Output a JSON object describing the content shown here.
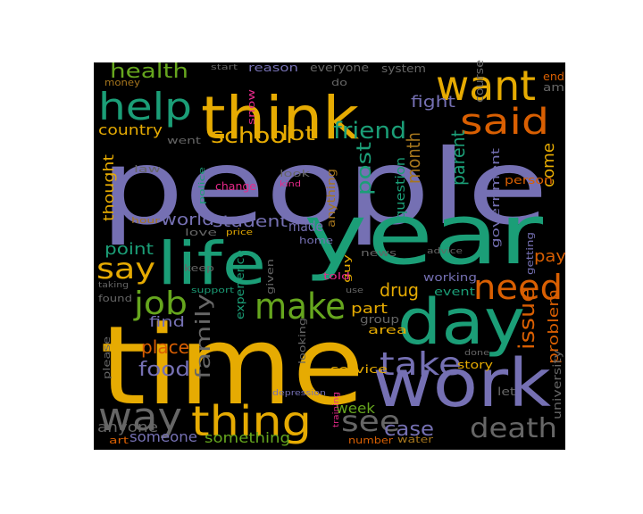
{
  "palette": {
    "purple": "#7570b3",
    "green": "#1b9e77",
    "gold": "#e6ab02",
    "orange": "#d95f02",
    "lime": "#66a61e",
    "gray": "#666666",
    "brown": "#a6761d",
    "pink": "#e7298a"
  },
  "background_color": "#000000",
  "words": [
    {
      "text": "people",
      "color": "purple"
    },
    {
      "text": "time",
      "color": "gold"
    },
    {
      "text": "year",
      "color": "green"
    },
    {
      "text": "think",
      "color": "gold"
    },
    {
      "text": "work",
      "color": "purple"
    },
    {
      "text": "day",
      "color": "green"
    },
    {
      "text": "life",
      "color": "green"
    },
    {
      "text": "want",
      "color": "gold"
    },
    {
      "text": "help",
      "color": "green"
    },
    {
      "text": "said",
      "color": "orange"
    },
    {
      "text": "thing",
      "color": "gold"
    },
    {
      "text": "way",
      "color": "gray"
    },
    {
      "text": "make",
      "color": "lime"
    },
    {
      "text": "need",
      "color": "orange"
    },
    {
      "text": "death",
      "color": "gray"
    },
    {
      "text": "take",
      "color": "purple"
    },
    {
      "text": "job",
      "color": "lime"
    },
    {
      "text": "say",
      "color": "gold"
    },
    {
      "text": "see",
      "color": "gray"
    },
    {
      "text": "school",
      "color": "gold"
    },
    {
      "text": "friend",
      "color": "green"
    },
    {
      "text": "health",
      "color": "lime"
    },
    {
      "text": "food",
      "color": "purple"
    },
    {
      "text": "family",
      "color": "gray"
    },
    {
      "text": "issue",
      "color": "orange"
    },
    {
      "text": "case",
      "color": "purple"
    },
    {
      "text": "lot",
      "color": "gold"
    },
    {
      "text": "month",
      "color": "brown"
    },
    {
      "text": "parent",
      "color": "green"
    },
    {
      "text": "post",
      "color": "green"
    },
    {
      "text": "drug",
      "color": "gold"
    },
    {
      "text": "place",
      "color": "orange"
    },
    {
      "text": "student",
      "color": "purple"
    },
    {
      "text": "world",
      "color": "purple"
    },
    {
      "text": "point",
      "color": "green"
    },
    {
      "text": "country",
      "color": "gold"
    },
    {
      "text": "fight",
      "color": "purple"
    },
    {
      "text": "thought",
      "color": "gold"
    },
    {
      "text": "made",
      "color": "purple"
    },
    {
      "text": "come",
      "color": "gold"
    },
    {
      "text": "pay",
      "color": "orange"
    },
    {
      "text": "problem",
      "color": "orange"
    },
    {
      "text": "part",
      "color": "gold"
    },
    {
      "text": "find",
      "color": "purple"
    },
    {
      "text": "week",
      "color": "lime"
    },
    {
      "text": "something",
      "color": "lime"
    },
    {
      "text": "someone",
      "color": "purple"
    },
    {
      "text": "anyone",
      "color": "gray"
    },
    {
      "text": "question",
      "color": "green"
    },
    {
      "text": "government",
      "color": "purple"
    },
    {
      "text": "story",
      "color": "gold"
    },
    {
      "text": "service",
      "color": "gold"
    },
    {
      "text": "group",
      "color": "gray"
    },
    {
      "text": "area",
      "color": "gold"
    },
    {
      "text": "event",
      "color": "green"
    },
    {
      "text": "working",
      "color": "purple"
    },
    {
      "text": "experience",
      "color": "green"
    },
    {
      "text": "university",
      "color": "gray"
    },
    {
      "text": "reason",
      "color": "purple"
    },
    {
      "text": "everyone",
      "color": "gray"
    },
    {
      "text": "system",
      "color": "gray"
    },
    {
      "text": "course",
      "color": "gray"
    },
    {
      "text": "end",
      "color": "orange"
    },
    {
      "text": "am",
      "color": "gray"
    },
    {
      "text": "money",
      "color": "brown"
    },
    {
      "text": "do",
      "color": "gray"
    },
    {
      "text": "went",
      "color": "gray"
    },
    {
      "text": "law",
      "color": "gray"
    },
    {
      "text": "police",
      "color": "green"
    },
    {
      "text": "change",
      "color": "pink"
    },
    {
      "text": "look",
      "color": "gray"
    },
    {
      "text": "kind",
      "color": "pink"
    },
    {
      "text": "snow",
      "color": "pink"
    },
    {
      "text": "start",
      "color": "gray"
    },
    {
      "text": "person",
      "color": "orange"
    },
    {
      "text": "hour",
      "color": "brown"
    },
    {
      "text": "love",
      "color": "gray"
    },
    {
      "text": "price",
      "color": "gold"
    },
    {
      "text": "home",
      "color": "purple"
    },
    {
      "text": "anything",
      "color": "brown"
    },
    {
      "text": "guy",
      "color": "gold"
    },
    {
      "text": "news",
      "color": "gray"
    },
    {
      "text": "advice",
      "color": "gray"
    },
    {
      "text": "getting",
      "color": "purple"
    },
    {
      "text": "keep",
      "color": "gray"
    },
    {
      "text": "given",
      "color": "gray"
    },
    {
      "text": "told",
      "color": "pink"
    },
    {
      "text": "use",
      "color": "gray"
    },
    {
      "text": "taking",
      "color": "gray"
    },
    {
      "text": "support",
      "color": "green"
    },
    {
      "text": "found",
      "color": "gray"
    },
    {
      "text": "please",
      "color": "gray"
    },
    {
      "text": "looking",
      "color": "gray"
    },
    {
      "text": "depression",
      "color": "purple"
    },
    {
      "text": "training",
      "color": "pink"
    },
    {
      "text": "done",
      "color": "gray"
    },
    {
      "text": "let",
      "color": "gray"
    },
    {
      "text": "number",
      "color": "orange"
    },
    {
      "text": "water",
      "color": "brown"
    },
    {
      "text": "art",
      "color": "orange"
    }
  ]
}
